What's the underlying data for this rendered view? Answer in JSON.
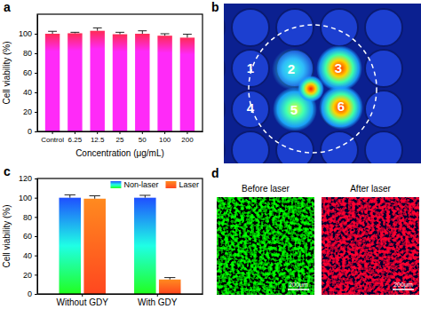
{
  "panel_labels": [
    "a",
    "b",
    "c",
    "d"
  ],
  "chart_data": [
    {
      "type": "bar",
      "categories": [
        "Control",
        "6.25",
        "12.5",
        "25",
        "50",
        "100",
        "200"
      ],
      "values": [
        100,
        100.5,
        103,
        99.5,
        100,
        98,
        96
      ],
      "errors": [
        2.5,
        1,
        3,
        2,
        3,
        2,
        3.5
      ],
      "color": "#ff2a55",
      "x_label": "Concentration (μg/mL)",
      "y_label": "Cell viability (%)",
      "ylim": [
        0,
        120
      ],
      "yticks": [
        0,
        20,
        40,
        60,
        80,
        100
      ]
    },
    {
      "type": "bar",
      "categories": [
        "Without GDY",
        "With GDY"
      ],
      "series": [
        {
          "name": "Non-laser",
          "color": "#1f4fff",
          "values": [
            100,
            100
          ],
          "errors": [
            3,
            2.5
          ]
        },
        {
          "name": "Laser",
          "color": "#ff8a1f",
          "values": [
            99,
            15
          ],
          "errors": [
            3,
            2
          ]
        }
      ],
      "y_label": "Cell viability (%)",
      "ylim": [
        0,
        120
      ],
      "yticks": [
        0,
        20,
        40,
        60,
        80,
        100,
        120
      ],
      "legend": "top-right"
    }
  ],
  "thermal_image": {
    "wells": [
      "1",
      "2",
      "3",
      "4",
      "5",
      "6"
    ]
  },
  "fluorescence_images": {
    "titles": [
      "Before laser",
      "After laser"
    ],
    "scale_bar": "200μm"
  }
}
